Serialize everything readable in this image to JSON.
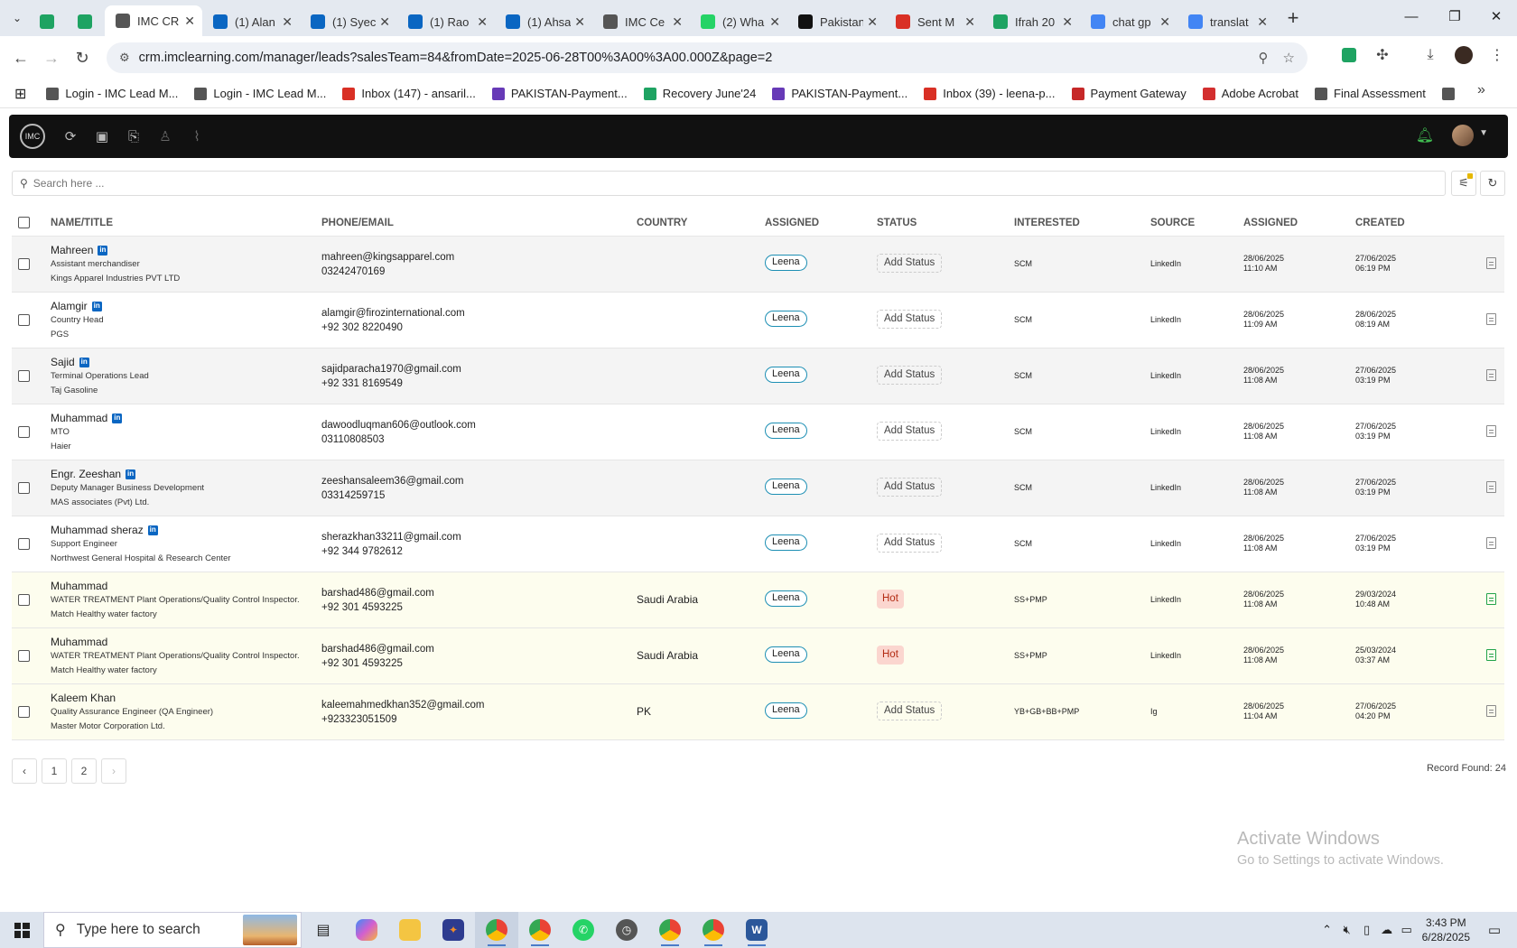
{
  "browser": {
    "tabs": [
      {
        "title": "",
        "favicon": "sheets-icon",
        "color": "#1ea362",
        "active": false
      },
      {
        "title": "",
        "favicon": "sheets-icon",
        "color": "#1ea362",
        "active": false
      },
      {
        "title": "IMC CR",
        "favicon": "imc-logo-icon",
        "color": "#555555",
        "active": true
      },
      {
        "title": "(1) Alan",
        "favicon": "linkedin-icon",
        "color": "#0a66c2",
        "active": false
      },
      {
        "title": "(1) Syec",
        "favicon": "linkedin-icon",
        "color": "#0a66c2",
        "active": false
      },
      {
        "title": "(1) Rao",
        "favicon": "linkedin-icon",
        "color": "#0a66c2",
        "active": false
      },
      {
        "title": "(1) Ahsa",
        "favicon": "linkedin-icon",
        "color": "#0a66c2",
        "active": false
      },
      {
        "title": "IMC Ce",
        "favicon": "imc-logo-icon",
        "color": "#555555",
        "active": false
      },
      {
        "title": "(2) Wha",
        "favicon": "whatsapp-icon",
        "color": "#25d366",
        "active": false
      },
      {
        "title": "Pakistan",
        "favicon": "openai-icon",
        "color": "#111111",
        "active": false
      },
      {
        "title": "Sent M",
        "favicon": "gmail-icon",
        "color": "#d93025",
        "active": false
      },
      {
        "title": "Ifrah 20",
        "favicon": "sheets-icon",
        "color": "#1ea362",
        "active": false
      },
      {
        "title": "chat gp",
        "favicon": "google-icon",
        "color": "#4285f4",
        "active": false
      },
      {
        "title": "translat",
        "favicon": "google-icon",
        "color": "#4285f4",
        "active": false
      }
    ],
    "url": "crm.imclearning.com/manager/leads?salesTeam=84&fromDate=2025-06-28T00%3A00%3A00.000Z&page=2",
    "bookmarks": [
      {
        "label": "Login - IMC Lead M...",
        "icon": "imc-logo-icon",
        "color": "#555555"
      },
      {
        "label": "Login - IMC Lead M...",
        "icon": "imc-logo-icon",
        "color": "#555555"
      },
      {
        "label": "Inbox (147) - ansaril...",
        "icon": "gmail-icon",
        "color": "#d93025"
      },
      {
        "label": "PAKISTAN-Payment...",
        "icon": "forms-icon",
        "color": "#673ab7"
      },
      {
        "label": "Recovery June'24",
        "icon": "sheets-icon",
        "color": "#1ea362"
      },
      {
        "label": "PAKISTAN-Payment...",
        "icon": "forms-icon",
        "color": "#673ab7"
      },
      {
        "label": "Inbox (39) - leena-p...",
        "icon": "gmail-icon",
        "color": "#d93025"
      },
      {
        "label": "Payment Gateway",
        "icon": "triangle-icon",
        "color": "#c62828"
      },
      {
        "label": "Adobe Acrobat",
        "icon": "acrobat-icon",
        "color": "#d32f2f"
      },
      {
        "label": "Final Assessment",
        "icon": "imc-logo-icon",
        "color": "#555555"
      },
      {
        "label": "",
        "icon": "imc-logo-icon",
        "color": "#555555"
      }
    ]
  },
  "app": {
    "logo_text": "IMC",
    "search_placeholder": "Search here ...",
    "columns": {
      "name": "NAME/TITLE",
      "phone": "PHONE/EMAIL",
      "country": "COUNTRY",
      "assigned": "ASSIGNED",
      "status": "STATUS",
      "interested": "INTERESTED",
      "source": "SOURCE",
      "assigned_at": "ASSIGNED",
      "created": "CREATED"
    },
    "leads": [
      {
        "name": "Mahreen",
        "linkedin": true,
        "title": "Assistant merchandiser",
        "company": "Kings Apparel Industries PVT LTD",
        "email": "mahreen@kingsapparel.com",
        "phone": "03242470169",
        "country": "",
        "assigned": "Leena",
        "status": "Add Status",
        "hot": false,
        "interested": "SCM",
        "source": "LinkedIn",
        "assigned_date": "28/06/2025",
        "assigned_time": "11:10 AM",
        "created_date": "27/06/2025",
        "created_time": "06:19 PM",
        "shade": 0,
        "doc_green": false
      },
      {
        "name": "Alamgir",
        "linkedin": true,
        "title": "Country Head",
        "company": "PGS",
        "email": "alamgir@firozinternational.com",
        "phone": "+92 302 8220490",
        "country": "",
        "assigned": "Leena",
        "status": "Add Status",
        "hot": false,
        "interested": "SCM",
        "source": "LinkedIn",
        "assigned_date": "28/06/2025",
        "assigned_time": "11:09 AM",
        "created_date": "28/06/2025",
        "created_time": "08:19 AM",
        "shade": 1,
        "doc_green": false
      },
      {
        "name": "Sajid",
        "linkedin": true,
        "title": "Terminal Operations Lead",
        "company": "Taj Gasoline",
        "email": "sajidparacha1970@gmail.com",
        "phone": "+92 331 8169549",
        "country": "",
        "assigned": "Leena",
        "status": "Add Status",
        "hot": false,
        "interested": "SCM",
        "source": "LinkedIn",
        "assigned_date": "28/06/2025",
        "assigned_time": "11:08 AM",
        "created_date": "27/06/2025",
        "created_time": "03:19 PM",
        "shade": 0,
        "doc_green": false
      },
      {
        "name": "Muhammad",
        "linkedin": true,
        "title": "MTO",
        "company": "Haier",
        "email": "dawoodluqman606@outlook.com",
        "phone": "03110808503",
        "country": "",
        "assigned": "Leena",
        "status": "Add Status",
        "hot": false,
        "interested": "SCM",
        "source": "LinkedIn",
        "assigned_date": "28/06/2025",
        "assigned_time": "11:08 AM",
        "created_date": "27/06/2025",
        "created_time": "03:19 PM",
        "shade": 1,
        "doc_green": false
      },
      {
        "name": "Engr. Zeeshan",
        "linkedin": true,
        "title": "Deputy Manager Business Development",
        "company": "MAS associates (Pvt) Ltd.",
        "email": "zeeshansaleem36@gmail.com",
        "phone": "03314259715",
        "country": "",
        "assigned": "Leena",
        "status": "Add Status",
        "hot": false,
        "interested": "SCM",
        "source": "LinkedIn",
        "assigned_date": "28/06/2025",
        "assigned_time": "11:08 AM",
        "created_date": "27/06/2025",
        "created_time": "03:19 PM",
        "shade": 0,
        "doc_green": false
      },
      {
        "name": "Muhammad sheraz",
        "linkedin": true,
        "title": "Support Engineer",
        "company": "Northwest General Hospital & Research Center",
        "email": "sherazkhan33211@gmail.com",
        "phone": "+92 344 9782612",
        "country": "",
        "assigned": "Leena",
        "status": "Add Status",
        "hot": false,
        "interested": "SCM",
        "source": "LinkedIn",
        "assigned_date": "28/06/2025",
        "assigned_time": "11:08 AM",
        "created_date": "27/06/2025",
        "created_time": "03:19 PM",
        "shade": 1,
        "doc_green": false
      },
      {
        "name": "Muhammad",
        "linkedin": false,
        "title": "WATER TREATMENT Plant Operations/Quality Control Inspector.",
        "company": "Match Healthy water factory",
        "email": "barshad486@gmail.com",
        "phone": "+92 301 4593225",
        "country": "Saudi Arabia",
        "assigned": "Leena",
        "status": "Hot",
        "hot": true,
        "interested": "SS+PMP",
        "source": "LinkedIn",
        "assigned_date": "28/06/2025",
        "assigned_time": "11:08 AM",
        "created_date": "29/03/2024",
        "created_time": "10:48 AM",
        "shade": 2,
        "doc_green": true
      },
      {
        "name": "Muhammad",
        "linkedin": false,
        "title": "WATER TREATMENT Plant Operations/Quality Control Inspector.",
        "company": "Match Healthy water factory",
        "email": "barshad486@gmail.com",
        "phone": "+92 301 4593225",
        "country": "Saudi Arabia",
        "assigned": "Leena",
        "status": "Hot",
        "hot": true,
        "interested": "SS+PMP",
        "source": "LinkedIn",
        "assigned_date": "28/06/2025",
        "assigned_time": "11:08 AM",
        "created_date": "25/03/2024",
        "created_time": "03:37 AM",
        "shade": 2,
        "doc_green": true
      },
      {
        "name": "Kaleem Khan",
        "linkedin": false,
        "title": "Quality Assurance Engineer (QA Engineer)",
        "company": "Master Motor Corporation Ltd.",
        "email": "kaleemahmedkhan352@gmail.com",
        "phone": "+923323051509",
        "country": "PK",
        "assigned": "Leena",
        "status": "Add Status",
        "hot": false,
        "interested": "YB+GB+BB+PMP",
        "source": "Ig",
        "assigned_date": "28/06/2025",
        "assigned_time": "11:04 AM",
        "created_date": "27/06/2025",
        "created_time": "04:20 PM",
        "shade": 2,
        "doc_green": false
      }
    ],
    "pagination": {
      "prev": "‹",
      "pages": [
        "1",
        "2"
      ],
      "next": "›"
    },
    "record_count": "Record Found: 24"
  },
  "watermark": {
    "line1": "Activate Windows",
    "line2": "Go to Settings to activate Windows."
  },
  "taskbar": {
    "search_placeholder": "Type here to search",
    "time": "3:43 PM",
    "date": "6/28/2025"
  }
}
